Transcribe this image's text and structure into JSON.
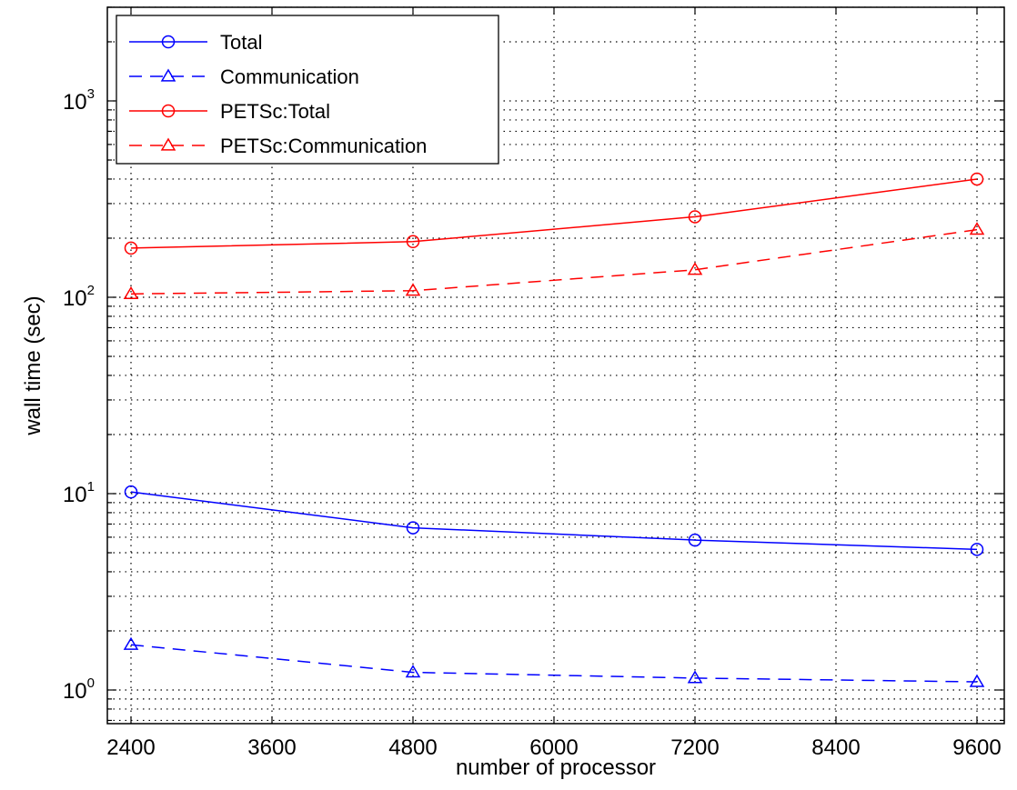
{
  "chart_data": {
    "type": "line",
    "title": "",
    "xlabel": "number of processor",
    "ylabel": "wall time (sec)",
    "yscale": "log",
    "xlim": [
      2400,
      9600
    ],
    "ylim": [
      0.7,
      3000
    ],
    "x_ticks": [
      2400,
      3600,
      4800,
      6000,
      7200,
      8400,
      9600
    ],
    "y_ticks": [
      {
        "base": "10",
        "exp": "0",
        "value": 1
      },
      {
        "base": "10",
        "exp": "1",
        "value": 10
      },
      {
        "base": "10",
        "exp": "2",
        "value": 100
      },
      {
        "base": "10",
        "exp": "3",
        "value": 1000
      }
    ],
    "grid": true,
    "legend_position": "top-left",
    "x": [
      2400,
      4800,
      7200,
      9600
    ],
    "series": [
      {
        "name": "Total",
        "values": [
          10.2,
          6.7,
          5.8,
          5.2
        ],
        "color": "#0000ff",
        "linestyle": "solid",
        "marker": "circle"
      },
      {
        "name": "Communication",
        "values": [
          1.7,
          1.23,
          1.15,
          1.1
        ],
        "color": "#0000ff",
        "linestyle": "dashed",
        "marker": "triangle"
      },
      {
        "name": "PETSc:Total",
        "values": [
          178,
          192,
          257,
          400
        ],
        "color": "#ff0000",
        "linestyle": "solid",
        "marker": "circle"
      },
      {
        "name": "PETSc:Communication",
        "values": [
          104,
          108,
          138,
          221
        ],
        "color": "#ff0000",
        "linestyle": "dashed",
        "marker": "triangle"
      }
    ]
  }
}
